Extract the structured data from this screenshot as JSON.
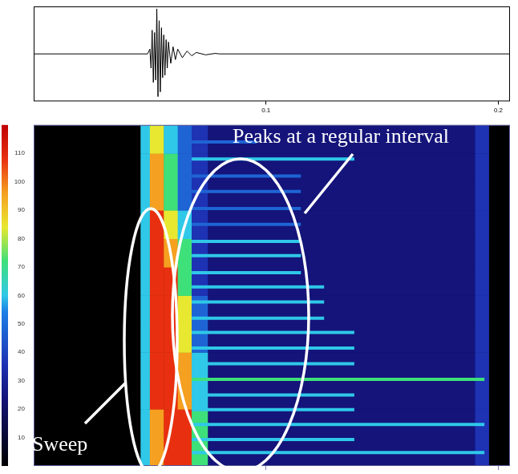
{
  "chart_data": [
    {
      "type": "line",
      "x": [
        0,
        0.049,
        0.05,
        0.0505,
        0.051,
        0.0515,
        0.052,
        0.0525,
        0.053,
        0.0535,
        0.054,
        0.0545,
        0.055,
        0.0555,
        0.056,
        0.0565,
        0.057,
        0.0575,
        0.058,
        0.059,
        0.06,
        0.061,
        0.062,
        0.064,
        0.066,
        0.068,
        0.07,
        0.074,
        0.078,
        0.08,
        0.205
      ],
      "values": [
        0,
        0,
        0.1,
        -0.3,
        0.5,
        -0.6,
        0.45,
        -0.55,
        0.95,
        -0.9,
        0.7,
        -0.8,
        0.55,
        -0.5,
        0.4,
        -0.45,
        0.3,
        -0.3,
        0.25,
        -0.2,
        0.15,
        -0.12,
        0.1,
        -0.08,
        0.06,
        -0.04,
        0.03,
        -0.02,
        0.01,
        0,
        0
      ],
      "color": "#000000",
      "xlim": [
        0,
        0.205
      ],
      "xticks": [
        0.1,
        0.2
      ],
      "ylim": [
        -1,
        1
      ],
      "tick_labels": "x",
      "grid": false
    },
    {
      "type": "heatmap",
      "xlim": [
        0,
        0.205
      ],
      "xticks": [
        0.1,
        0.2
      ],
      "ylim": [
        0,
        120
      ],
      "yticks": [
        10,
        20,
        30,
        40,
        50,
        60,
        70,
        80,
        90,
        100,
        110
      ],
      "tick_labels": "y",
      "grid": false,
      "time_edges": [
        0,
        0.046,
        0.05,
        0.056,
        0.062,
        0.068,
        0.075,
        0.19,
        0.196,
        0.205
      ],
      "freq_edges": [
        0,
        10,
        20,
        30,
        40,
        50,
        60,
        70,
        80,
        90,
        100,
        110,
        120
      ],
      "cells": [
        [
          0,
          5,
          8,
          9,
          9,
          6,
          2,
          3,
          0
        ],
        [
          0,
          5,
          8,
          9,
          9,
          6,
          2,
          3,
          0
        ],
        [
          0,
          5,
          9,
          9,
          8,
          5,
          2,
          3,
          0
        ],
        [
          0,
          5,
          9,
          9,
          8,
          5,
          2,
          3,
          0
        ],
        [
          0,
          5,
          9,
          9,
          7,
          4,
          2,
          3,
          0
        ],
        [
          0,
          5,
          9,
          9,
          7,
          4,
          2,
          3,
          0
        ],
        [
          0,
          5,
          9,
          9,
          6,
          3,
          2,
          3,
          0
        ],
        [
          0,
          5,
          9,
          8,
          6,
          3,
          2,
          3,
          0
        ],
        [
          0,
          5,
          9,
          7,
          5,
          3,
          2,
          3,
          0
        ],
        [
          0,
          5,
          8,
          6,
          4,
          3,
          2,
          3,
          0
        ],
        [
          0,
          5,
          8,
          6,
          4,
          3,
          2,
          3,
          0
        ],
        [
          0,
          5,
          7,
          5,
          4,
          3,
          2,
          3,
          0
        ]
      ],
      "color_range": [
        0,
        10
      ],
      "peaks": [
        {
          "freq": 4.7,
          "start": 0.068,
          "end": 0.194,
          "level": 5
        },
        {
          "freq": 9.3,
          "start": 0.068,
          "end": 0.138,
          "level": 5
        },
        {
          "freq": 14.6,
          "start": 0.068,
          "end": 0.194,
          "level": 5
        },
        {
          "freq": 19.8,
          "start": 0.068,
          "end": 0.138,
          "level": 5
        },
        {
          "freq": 25,
          "start": 0.068,
          "end": 0.138,
          "level": 5
        },
        {
          "freq": 30.5,
          "start": 0.068,
          "end": 0.194,
          "level": 6
        },
        {
          "freq": 36,
          "start": 0.068,
          "end": 0.138,
          "level": 5
        },
        {
          "freq": 41.5,
          "start": 0.068,
          "end": 0.138,
          "level": 5
        },
        {
          "freq": 47,
          "start": 0.068,
          "end": 0.138,
          "level": 5
        },
        {
          "freq": 52,
          "start": 0.068,
          "end": 0.125,
          "level": 5
        },
        {
          "freq": 57.7,
          "start": 0.068,
          "end": 0.125,
          "level": 5
        },
        {
          "freq": 63,
          "start": 0.068,
          "end": 0.125,
          "level": 5
        },
        {
          "freq": 68,
          "start": 0.068,
          "end": 0.115,
          "level": 5
        },
        {
          "freq": 74,
          "start": 0.068,
          "end": 0.115,
          "level": 5
        },
        {
          "freq": 79,
          "start": 0.068,
          "end": 0.115,
          "level": 5
        },
        {
          "freq": 85,
          "start": 0.068,
          "end": 0.115,
          "level": 4
        },
        {
          "freq": 90.6,
          "start": 0.068,
          "end": 0.115,
          "level": 4
        },
        {
          "freq": 96.6,
          "start": 0.068,
          "end": 0.115,
          "level": 4
        },
        {
          "freq": 102,
          "start": 0.068,
          "end": 0.115,
          "level": 4
        },
        {
          "freq": 108,
          "start": 0.068,
          "end": 0.138,
          "level": 5
        },
        {
          "freq": 114,
          "start": 0.068,
          "end": 0.096,
          "level": 4
        }
      ],
      "annotations": [
        "Sweep",
        "Peaks at a regular interval"
      ]
    }
  ]
}
